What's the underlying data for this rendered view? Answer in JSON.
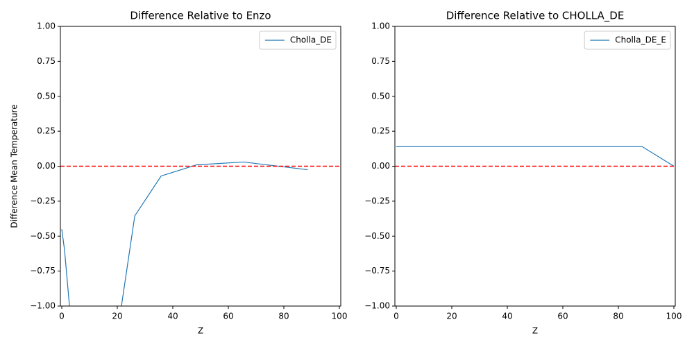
{
  "chart_data": [
    {
      "type": "line",
      "title": "Difference Relative to Enzo",
      "xlabel": "Z",
      "ylabel": "Difference Mean Temperature",
      "x": [
        0,
        1,
        3,
        20,
        26.3,
        35.8,
        48.6,
        65.5,
        88.6
      ],
      "series": [
        {
          "name": "Cholla_DE",
          "color": "#1f77b4",
          "values": [
            -0.45,
            -0.6,
            -1.05,
            -1.2,
            -0.355,
            -0.07,
            0.01,
            0.03,
            -0.025
          ]
        }
      ],
      "hline": {
        "value": 0,
        "color": "#ff0000"
      },
      "xlim": [
        -0.5,
        100.5
      ],
      "xticks": [
        0,
        20,
        40,
        60,
        80,
        100
      ],
      "ylim": [
        -1,
        1
      ],
      "yticks": [
        {
          "value": -1,
          "label": "−1.00"
        },
        {
          "value": -0.75,
          "label": "−0.75"
        },
        {
          "value": -0.5,
          "label": "−0.50"
        },
        {
          "value": -0.25,
          "label": "−0.25"
        },
        {
          "value": 0,
          "label": "0.00"
        },
        {
          "value": 0.25,
          "label": "0.25"
        },
        {
          "value": 0.5,
          "label": "0.50"
        },
        {
          "value": 0.75,
          "label": "0.75"
        },
        {
          "value": 1,
          "label": "1.00"
        }
      ],
      "legend": "upper right"
    },
    {
      "type": "line",
      "title": "Difference Relative to CHOLLA_DE",
      "xlabel": "Z",
      "x": [
        0,
        20,
        40,
        60,
        88.6,
        100
      ],
      "series": [
        {
          "name": "Cholla_DE_E",
          "color": "#1f77b4",
          "values": [
            0.14,
            0.14,
            0.14,
            0.14,
            0.14,
            0
          ]
        }
      ],
      "hline": {
        "value": 0,
        "color": "#ff0000"
      },
      "xlim": [
        -0.5,
        100.5
      ],
      "xticks": [
        0,
        20,
        40,
        60,
        80,
        100
      ],
      "ylim": [
        -1,
        1
      ],
      "yticks": [
        {
          "value": -1,
          "label": "−1.00"
        },
        {
          "value": -0.75,
          "label": "−0.75"
        },
        {
          "value": -0.5,
          "label": "−0.50"
        },
        {
          "value": -0.25,
          "label": "−0.25"
        },
        {
          "value": 0,
          "label": "0.00"
        },
        {
          "value": 0.25,
          "label": "0.25"
        },
        {
          "value": 0.5,
          "label": "0.50"
        },
        {
          "value": 0.75,
          "label": "0.75"
        },
        {
          "value": 1,
          "label": "1.00"
        }
      ],
      "legend": "upper right"
    }
  ]
}
